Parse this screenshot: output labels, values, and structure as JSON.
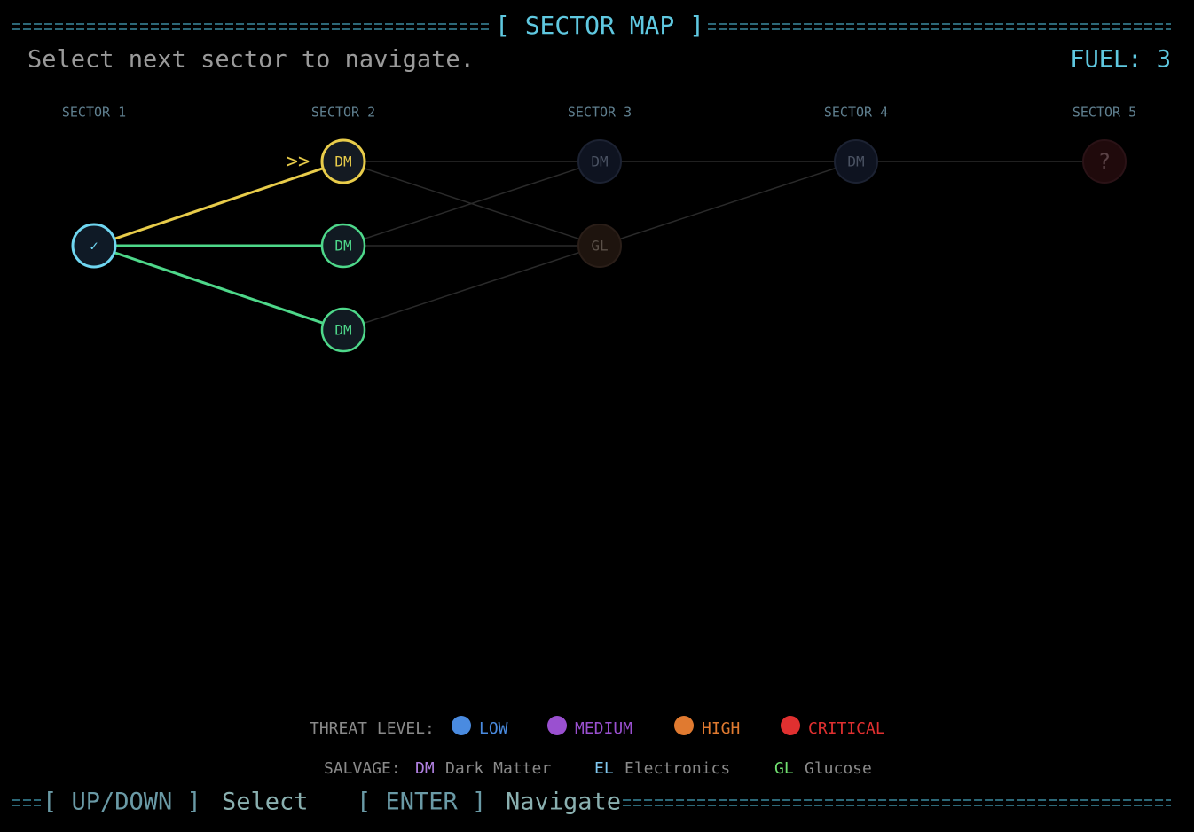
{
  "header": {
    "title": "[ SECTOR MAP ]",
    "prompt": "Select next sector to navigate.",
    "fuel": "FUEL: 3"
  },
  "columns": [
    "SECTOR 1",
    "SECTOR 2",
    "SECTOR 3",
    "SECTOR 4",
    "SECTOR 5"
  ],
  "cursor": ">>",
  "nodes": [
    {
      "label": "✓"
    },
    {
      "label": "DM"
    },
    {
      "label": "DM"
    },
    {
      "label": "DM"
    },
    {
      "label": "DM"
    },
    {
      "label": "GL"
    },
    {
      "label": "DM"
    },
    {
      "label": "?"
    }
  ],
  "legend": {
    "threat_title": "THREAT LEVEL:",
    "threats": [
      {
        "name": "LOW"
      },
      {
        "name": "MEDIUM"
      },
      {
        "name": "HIGH"
      },
      {
        "name": "CRITICAL"
      }
    ],
    "salvage_title": "SALVAGE:",
    "salvage": [
      {
        "code": "DM",
        "name": "Dark Matter"
      },
      {
        "code": "EL",
        "name": "Electronics"
      },
      {
        "code": "GL",
        "name": "Glucose"
      }
    ]
  },
  "footer": {
    "keys": [
      {
        "key": "[ UP/DOWN ]",
        "action": "Select"
      },
      {
        "key": "[ ENTER ]",
        "action": "Navigate"
      }
    ]
  }
}
